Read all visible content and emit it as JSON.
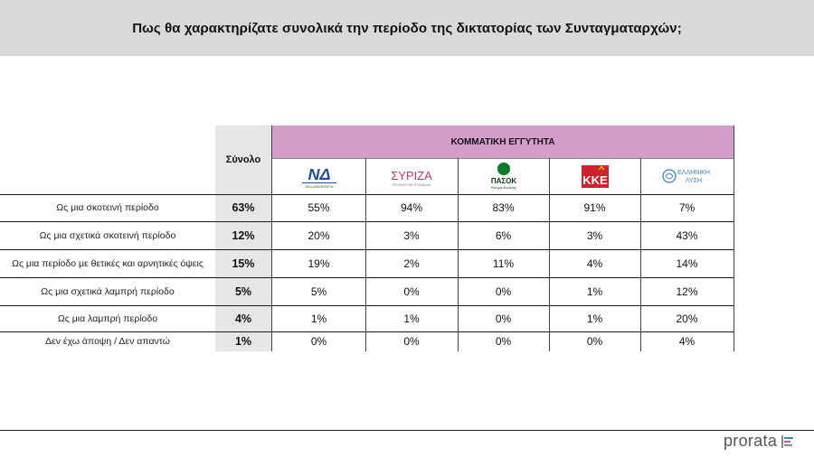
{
  "title": "Πως θα χαρακτηρίζατε συνολικά την περίοδο της δικτατορίας των Συνταγματαρχών;",
  "table": {
    "total_header": "Σύνολο",
    "group_header": "ΚΟΜΜΑΤΙΚΗ ΕΓΓΥΤΗΤΑ",
    "parties": [
      {
        "name": "ΝΔ",
        "logo_text": "ΝΔ",
        "logo_sub": "ΝΕΑ ΔΗΜΟΚΡΑΤΙΑ",
        "color": "#1f4fa0"
      },
      {
        "name": "ΣΥΡΙΖΑ",
        "logo_text": "ΣΥΡΙΖΑ",
        "logo_sub": "ΠΡΟΟΔΕΥΤΙΚΗ ΣΥΜΜΑΧΙΑ",
        "color": "#c0386e"
      },
      {
        "name": "ΠΑΣΟΚ",
        "logo_text": "ΠΑΣΟΚ",
        "logo_sub": "Κίνημα Αλλαγής",
        "color": "#0f7a2e"
      },
      {
        "name": "ΚΚΕ",
        "logo_text": "ΚΚΕ",
        "logo_sub": "",
        "color": "#d0202a"
      },
      {
        "name": "ΕΛΛΗΝΙΚΗ ΛΥΣΗ",
        "logo_text": "ΕΛΛΗΝΙΚΗ",
        "logo_sub": "ΛΥΣΗ",
        "color": "#3a7fc4"
      }
    ],
    "rows": [
      {
        "label": "Ως μια σκοτεινή περίοδο",
        "total": "63%",
        "values": [
          "55%",
          "94%",
          "83%",
          "91%",
          "7%"
        ]
      },
      {
        "label": "Ως μια σχετικά σκοτεινή περίοδο",
        "total": "12%",
        "values": [
          "20%",
          "3%",
          "6%",
          "3%",
          "43%"
        ]
      },
      {
        "label": "Ως μια περίοδο με θετικές και αρνητικές όψεις",
        "total": "15%",
        "values": [
          "19%",
          "2%",
          "11%",
          "4%",
          "14%"
        ]
      },
      {
        "label": "Ως μια σχετικά λαμπρή περίοδο",
        "total": "5%",
        "values": [
          "5%",
          "0%",
          "0%",
          "1%",
          "12%"
        ]
      },
      {
        "label": "Ως μια λαμπρή περίοδο",
        "total": "4%",
        "values": [
          "1%",
          "1%",
          "0%",
          "1%",
          "20%"
        ]
      },
      {
        "label": "Δεν έχω άποψη / Δεν απαντώ",
        "total": "1%",
        "values": [
          "0%",
          "0%",
          "0%",
          "0%",
          "4%"
        ]
      }
    ]
  },
  "chart_data": {
    "type": "table",
    "title": "Πως θα χαρακτηρίζατε συνολικά την περίοδο της δικτατορίας των Συνταγματαρχών;",
    "columns": [
      "Σύνολο",
      "ΝΔ",
      "ΣΥΡΙΖΑ",
      "ΠΑΣΟΚ",
      "ΚΚΕ",
      "ΕΛΛΗΝΙΚΗ ΛΥΣΗ"
    ],
    "categories": [
      "Ως μια σκοτεινή περίοδο",
      "Ως μια σχετικά σκοτεινή περίοδο",
      "Ως μια περίοδο με θετικές και αρνητικές όψεις",
      "Ως μια σχετικά λαμπρή περίοδο",
      "Ως μια λαμπρή περίοδο",
      "Δεν έχω άποψη / Δεν απαντώ"
    ],
    "series": [
      {
        "name": "Σύνολο",
        "values": [
          63,
          12,
          15,
          5,
          4,
          1
        ]
      },
      {
        "name": "ΝΔ",
        "values": [
          55,
          20,
          19,
          5,
          1,
          0
        ]
      },
      {
        "name": "ΣΥΡΙΖΑ",
        "values": [
          94,
          3,
          2,
          0,
          1,
          0
        ]
      },
      {
        "name": "ΠΑΣΟΚ",
        "values": [
          83,
          6,
          11,
          0,
          0,
          0
        ]
      },
      {
        "name": "ΚΚΕ",
        "values": [
          91,
          3,
          4,
          1,
          1,
          0
        ]
      },
      {
        "name": "ΕΛΛΗΝΙΚΗ ΛΥΣΗ",
        "values": [
          7,
          43,
          14,
          12,
          20,
          4
        ]
      }
    ],
    "unit": "%"
  },
  "brand": {
    "name": "prorata",
    "bar_colors": [
      "#2e8fb0",
      "#c8569a",
      "#8a8a8a"
    ]
  }
}
